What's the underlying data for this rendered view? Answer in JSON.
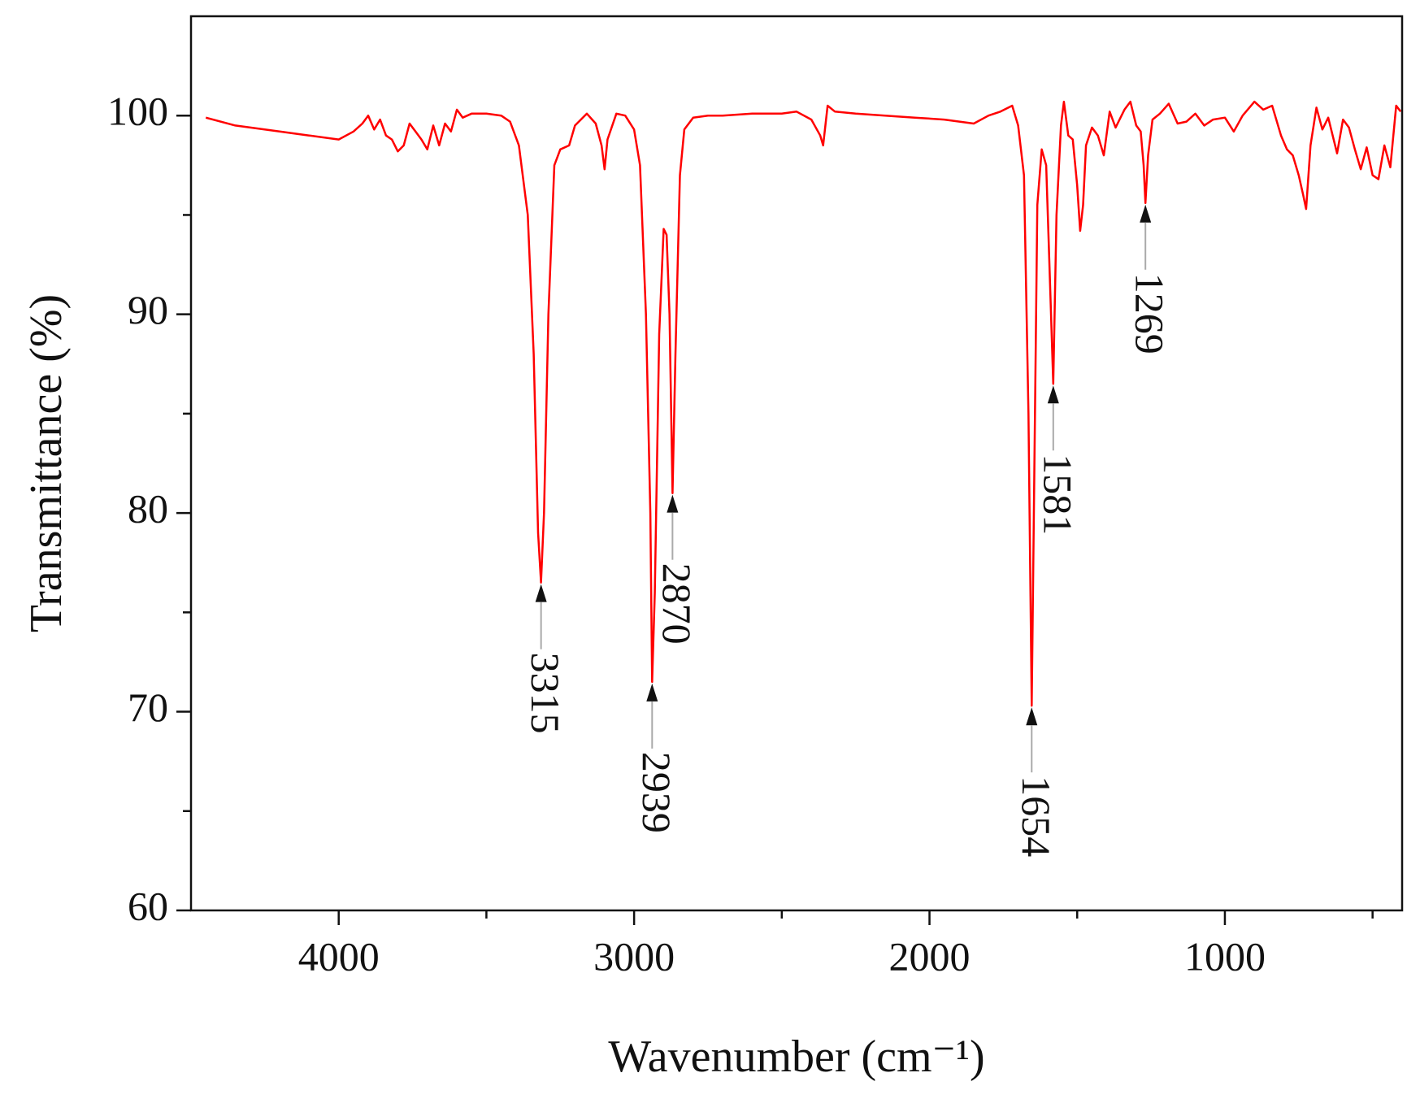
{
  "chart_data": {
    "type": "line",
    "x_label": "Wavenumber (cm⁻¹)",
    "y_label": "Transmittance (%)",
    "xlim": [
      4500,
      400
    ],
    "ylim": [
      60,
      105
    ],
    "xticks": [
      4000,
      3000,
      2000,
      1000
    ],
    "xminorticks": [
      3500,
      2500,
      1500,
      500
    ],
    "yticks": [
      60,
      70,
      80,
      90,
      100
    ],
    "yminorticks": [
      65,
      75,
      85,
      95
    ],
    "x": [
      4450,
      4350,
      4200,
      4100,
      4000,
      3950,
      3920,
      3900,
      3880,
      3860,
      3840,
      3820,
      3800,
      3780,
      3760,
      3740,
      3720,
      3700,
      3680,
      3660,
      3640,
      3620,
      3600,
      3580,
      3550,
      3500,
      3450,
      3420,
      3390,
      3360,
      3340,
      3325,
      3315,
      3305,
      3290,
      3270,
      3250,
      3220,
      3200,
      3160,
      3130,
      3110,
      3100,
      3090,
      3060,
      3030,
      3000,
      2980,
      2960,
      2945,
      2939,
      2930,
      2915,
      2900,
      2890,
      2880,
      2870,
      2860,
      2845,
      2830,
      2800,
      2750,
      2700,
      2600,
      2500,
      2450,
      2400,
      2370,
      2360,
      2345,
      2320,
      2250,
      2150,
      2050,
      1950,
      1850,
      1800,
      1760,
      1720,
      1700,
      1680,
      1665,
      1654,
      1645,
      1635,
      1620,
      1605,
      1595,
      1581,
      1570,
      1555,
      1545,
      1530,
      1515,
      1500,
      1490,
      1480,
      1470,
      1450,
      1430,
      1410,
      1390,
      1370,
      1340,
      1320,
      1300,
      1285,
      1275,
      1269,
      1260,
      1245,
      1220,
      1190,
      1160,
      1130,
      1100,
      1070,
      1040,
      1000,
      970,
      940,
      900,
      870,
      840,
      810,
      790,
      770,
      750,
      735,
      725,
      710,
      690,
      670,
      650,
      620,
      600,
      580,
      560,
      540,
      520,
      500,
      480,
      460,
      440,
      420,
      405
    ],
    "series": [
      {
        "color": "#ff0000",
        "values": [
          99.9,
          99.5,
          99.2,
          99.0,
          98.8,
          99.2,
          99.6,
          100.0,
          99.3,
          99.8,
          99.0,
          98.8,
          98.2,
          98.5,
          99.6,
          99.2,
          98.8,
          98.3,
          99.5,
          98.5,
          99.6,
          99.2,
          100.3,
          99.9,
          100.1,
          100.1,
          100.0,
          99.7,
          98.5,
          95,
          88,
          79,
          76.5,
          80,
          90,
          97.5,
          98.3,
          98.5,
          99.5,
          100.1,
          99.6,
          98.5,
          97.3,
          98.8,
          100.1,
          100.0,
          99.3,
          97.5,
          90,
          80,
          71.5,
          76,
          89,
          94.3,
          94.0,
          90,
          81,
          88,
          97,
          99.3,
          99.9,
          100.0,
          100.0,
          100.1,
          100.1,
          100.2,
          99.8,
          99.0,
          98.5,
          100.5,
          100.2,
          100.1,
          100.0,
          99.9,
          99.8,
          99.6,
          100.0,
          100.2,
          100.5,
          99.5,
          97,
          85,
          70.3,
          82,
          95.5,
          98.3,
          97.5,
          93,
          86.5,
          95,
          99.5,
          100.7,
          99.0,
          98.8,
          96.5,
          94.2,
          95.5,
          98.5,
          99.4,
          99.0,
          98.0,
          100.2,
          99.4,
          100.3,
          100.7,
          99.5,
          99.2,
          97.5,
          95.6,
          98,
          99.8,
          100.1,
          100.6,
          99.6,
          99.7,
          100.1,
          99.5,
          99.8,
          99.9,
          99.2,
          100.0,
          100.7,
          100.3,
          100.5,
          99.0,
          98.3,
          98.0,
          97.0,
          96.0,
          95.3,
          98.5,
          100.4,
          99.3,
          99.9,
          98.1,
          99.8,
          99.4,
          98.3,
          97.3,
          98.4,
          97.0,
          96.8,
          98.5,
          97.4,
          100.5,
          100.2
        ]
      }
    ],
    "annotations": [
      {
        "text": "3315",
        "x": 3315,
        "y": 76.5
      },
      {
        "text": "2939",
        "x": 2939,
        "y": 71.5
      },
      {
        "text": "2870",
        "x": 2870,
        "y": 81
      },
      {
        "text": "1654",
        "x": 1654,
        "y": 70.3
      },
      {
        "text": "1581",
        "x": 1581,
        "y": 86.5
      },
      {
        "text": "1269",
        "x": 1269,
        "y": 95.6
      }
    ]
  }
}
